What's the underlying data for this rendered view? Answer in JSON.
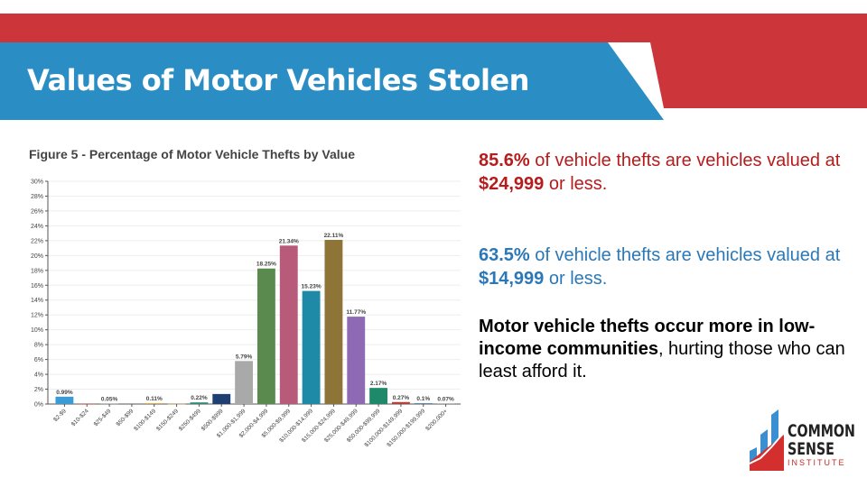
{
  "header": {
    "title": "Values of Motor Vehicles Stolen",
    "colors": {
      "red": "#cc353a",
      "blue": "#2a8ec4"
    }
  },
  "stats": {
    "s1": {
      "pct": "85.6%",
      "mid": " of vehicle thefts are vehicles valued at ",
      "amount": "$24,999",
      "end": " or less."
    },
    "s2": {
      "pct": "63.5%",
      "mid": " of vehicle thefts are vehicles valued at ",
      "amount": "$14,999",
      "end": " or less."
    },
    "s3": {
      "bold": "Motor vehicle thefts occur more in low-income communities",
      "rest": ", hurting those who can least afford it."
    }
  },
  "logo": {
    "line1": "COMMON",
    "line2": "SENSE",
    "line3": "INSTITUTE"
  },
  "chart_data": {
    "type": "bar",
    "title": "Figure 5 - Percentage of Motor Vehicle Thefts by Value",
    "xlabel": "",
    "ylabel": "",
    "ylim": [
      0,
      30
    ],
    "yticks": [
      "0%",
      "2%",
      "4%",
      "6%",
      "8%",
      "10%",
      "12%",
      "14%",
      "16%",
      "18%",
      "20%",
      "22%",
      "24%",
      "26%",
      "28%",
      "30%"
    ],
    "grid": true,
    "categories": [
      "$2-$9",
      "$10-$24",
      "$25-$49",
      "$50-$99",
      "$100-$149",
      "$150-$249",
      "$250-$499",
      "$500-$999",
      "$1,000-$1,999",
      "$2,000-$4,999",
      "$5,000-$9,999",
      "$10,000-$14,999",
      "$15,000-$24,999",
      "$25,000-$49,999",
      "$50,000-$99,999",
      "$100,000-$149,999",
      "$150,000-$199,999",
      "$200,000+"
    ],
    "values": [
      0.99,
      0.03,
      0.05,
      0.02,
      0.11,
      0.03,
      0.22,
      1.35,
      5.79,
      18.25,
      21.34,
      15.23,
      22.11,
      11.77,
      2.17,
      0.27,
      0.1,
      0.07
    ],
    "labels": [
      "0.99%",
      "",
      "0.05%",
      "",
      "0.11%",
      "",
      "0.22%",
      "",
      "5.79%",
      "18.25%",
      "21.34%",
      "15.23%",
      "22.11%",
      "11.77%",
      "2.17%",
      "0.27%",
      "0.1%",
      "0.07%"
    ],
    "colors": [
      "#3a9bd5",
      "#c0392b",
      "#7f8c8d",
      "#555",
      "#e0a030",
      "#d4b060",
      "#2e8b74",
      "#1f3f73",
      "#a9a9a9",
      "#5a8a4e",
      "#b85a7a",
      "#1f8aa8",
      "#8e7436",
      "#8e6ab5",
      "#1e8a6a",
      "#b5413a",
      "#3a6fb0",
      "#888"
    ]
  }
}
